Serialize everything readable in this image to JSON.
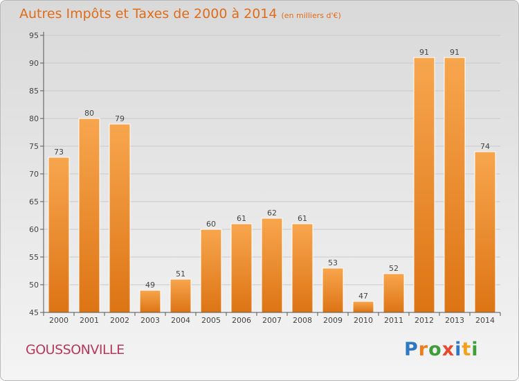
{
  "header": {
    "title": "Autres Impôts et Taxes de 2000 à 2014",
    "subtitle": "(en milliers d'€)"
  },
  "footer": {
    "commune": "GOUSSONVILLE",
    "logo_text": "Proxiti"
  },
  "colors": {
    "bar": "#f08a24",
    "title": "#e06c1a",
    "commune": "#b8385e"
  },
  "chart_data": {
    "type": "bar",
    "title": "Autres Impôts et Taxes de 2000 à 2014",
    "subtitle": "(en milliers d'€)",
    "categories": [
      "2000",
      "2001",
      "2002",
      "2003",
      "2004",
      "2005",
      "2006",
      "2007",
      "2008",
      "2009",
      "2010",
      "2011",
      "2012",
      "2013",
      "2014"
    ],
    "values": [
      73,
      80,
      79,
      49,
      51,
      60,
      61,
      62,
      61,
      53,
      47,
      52,
      91,
      91,
      74
    ],
    "ylim": [
      45,
      95
    ],
    "yticks": [
      45,
      50,
      55,
      60,
      65,
      70,
      75,
      80,
      85,
      90,
      95
    ],
    "grid": true,
    "data_labels": true
  }
}
